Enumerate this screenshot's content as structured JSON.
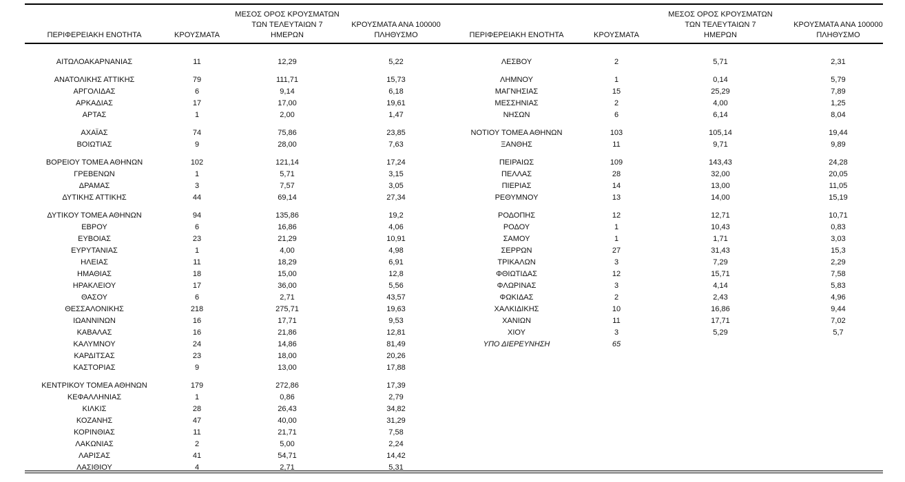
{
  "colors": {
    "background": "#ffffff",
    "text": "#111111",
    "rule": "#000000",
    "bottom_rule_dark": "#3f3f3f",
    "bottom_rule_light": "#e6e6e6",
    "bottom_rule_gray": "#9a9a9a"
  },
  "columns": {
    "region": "ΠΕΡΙΦΕΡΕΙΑΚΗ ΕΝΟΤΗΤΑ",
    "cases": "ΚΡΟΥΣΜΑΤΑ",
    "avg7_lines": [
      "ΜΕΣΟΣ ΟΡΟΣ ΚΡΟΥΣΜΑΤΩΝ",
      "ΤΩΝ ΤΕΛΕΥΤΑΙΩΝ 7",
      "ΗΜΕΡΩΝ"
    ],
    "per100k_lines": [
      "ΚΡΟΥΣΜΑΤΑ ΑΝΑ 100000",
      "ΠΛΗΘΥΣΜΟ"
    ]
  },
  "left_table": {
    "groups": [
      [
        {
          "region": "ΑΙΤΩΛΟΑΚΑΡΝΑΝΙΑΣ",
          "cases": "11",
          "avg7": "12,29",
          "per100k": "5,22"
        }
      ],
      [
        {
          "region": "ΑΝΑΤΟΛΙΚΗΣ ΑΤΤΙΚΗΣ",
          "cases": "79",
          "avg7": "111,71",
          "per100k": "15,73"
        },
        {
          "region": "ΑΡΓΟΛΙΔΑΣ",
          "cases": "6",
          "avg7": "9,14",
          "per100k": "6,18"
        },
        {
          "region": "ΑΡΚΑΔΙΑΣ",
          "cases": "17",
          "avg7": "17,00",
          "per100k": "19,61"
        },
        {
          "region": "ΑΡΤΑΣ",
          "cases": "1",
          "avg7": "2,00",
          "per100k": "1,47"
        }
      ],
      [
        {
          "region": "ΑΧΑΪΑΣ",
          "cases": "74",
          "avg7": "75,86",
          "per100k": "23,85"
        },
        {
          "region": "ΒΟΙΩΤΙΑΣ",
          "cases": "9",
          "avg7": "28,00",
          "per100k": "7,63"
        }
      ],
      [
        {
          "region": "ΒΟΡΕΙΟΥ ΤΟΜΕΑ ΑΘΗΝΩΝ",
          "cases": "102",
          "avg7": "121,14",
          "per100k": "17,24"
        },
        {
          "region": "ΓΡΕΒΕΝΩΝ",
          "cases": "1",
          "avg7": "5,71",
          "per100k": "3,15"
        },
        {
          "region": "ΔΡΑΜΑΣ",
          "cases": "3",
          "avg7": "7,57",
          "per100k": "3,05"
        },
        {
          "region": "ΔΥΤΙΚΗΣ ΑΤΤΙΚΗΣ",
          "cases": "44",
          "avg7": "69,14",
          "per100k": "27,34"
        }
      ],
      [
        {
          "region": "ΔΥΤΙΚΟΥ ΤΟΜΕΑ ΑΘΗΝΩΝ",
          "cases": "94",
          "avg7": "135,86",
          "per100k": "19,2"
        },
        {
          "region": "ΕΒΡΟΥ",
          "cases": "6",
          "avg7": "16,86",
          "per100k": "4,06"
        },
        {
          "region": "ΕΥΒΟΙΑΣ",
          "cases": "23",
          "avg7": "21,29",
          "per100k": "10,91"
        },
        {
          "region": "ΕΥΡΥΤΑΝΙΑΣ",
          "cases": "1",
          "avg7": "4,00",
          "per100k": "4,98"
        },
        {
          "region": "ΗΛΕΙΑΣ",
          "cases": "11",
          "avg7": "18,29",
          "per100k": "6,91"
        },
        {
          "region": "ΗΜΑΘΙΑΣ",
          "cases": "18",
          "avg7": "15,00",
          "per100k": "12,8"
        },
        {
          "region": "ΗΡΑΚΛΕΙΟΥ",
          "cases": "17",
          "avg7": "36,00",
          "per100k": "5,56"
        },
        {
          "region": "ΘΑΣΟΥ",
          "cases": "6",
          "avg7": "2,71",
          "per100k": "43,57"
        },
        {
          "region": "ΘΕΣΣΑΛΟΝΙΚΗΣ",
          "cases": "218",
          "avg7": "275,71",
          "per100k": "19,63"
        },
        {
          "region": "ΙΩΑΝΝΙΝΩΝ",
          "cases": "16",
          "avg7": "17,71",
          "per100k": "9,53"
        },
        {
          "region": "ΚΑΒΑΛΑΣ",
          "cases": "16",
          "avg7": "21,86",
          "per100k": "12,81"
        },
        {
          "region": "ΚΑΛΥΜΝΟΥ",
          "cases": "24",
          "avg7": "14,86",
          "per100k": "81,49"
        },
        {
          "region": "ΚΑΡΔΙΤΣΑΣ",
          "cases": "23",
          "avg7": "18,00",
          "per100k": "20,26"
        },
        {
          "region": "ΚΑΣΤΟΡΙΑΣ",
          "cases": "9",
          "avg7": "13,00",
          "per100k": "17,88"
        }
      ],
      [
        {
          "region": "ΚΕΝΤΡΙΚΟΥ ΤΟΜΕΑ ΑΘΗΝΩΝ",
          "cases": "179",
          "avg7": "272,86",
          "per100k": "17,39"
        },
        {
          "region": "ΚΕΦΑΛΛΗΝΙΑΣ",
          "cases": "1",
          "avg7": "0,86",
          "per100k": "2,79"
        },
        {
          "region": "ΚΙΛΚΙΣ",
          "cases": "28",
          "avg7": "26,43",
          "per100k": "34,82"
        },
        {
          "region": "ΚΟΖΑΝΗΣ",
          "cases": "47",
          "avg7": "40,00",
          "per100k": "31,29"
        },
        {
          "region": "ΚΟΡΙΝΘΙΑΣ",
          "cases": "11",
          "avg7": "21,71",
          "per100k": "7,58"
        },
        {
          "region": "ΛΑΚΩΝΙΑΣ",
          "cases": "2",
          "avg7": "5,00",
          "per100k": "2,24"
        },
        {
          "region": "ΛΑΡΙΣΑΣ",
          "cases": "41",
          "avg7": "54,71",
          "per100k": "14,42"
        },
        {
          "region": "ΛΑΣΙΘΙΟΥ",
          "cases": "4",
          "avg7": "2,71",
          "per100k": "5,31"
        }
      ]
    ]
  },
  "right_table": {
    "groups": [
      [
        {
          "region": "ΛΕΣΒΟΥ",
          "cases": "2",
          "avg7": "5,71",
          "per100k": "2,31"
        }
      ],
      [
        {
          "region": "ΛΗΜΝΟΥ",
          "cases": "1",
          "avg7": "0,14",
          "per100k": "5,79"
        },
        {
          "region": "ΜΑΓΝΗΣΙΑΣ",
          "cases": "15",
          "avg7": "25,29",
          "per100k": "7,89"
        },
        {
          "region": "ΜΕΣΣΗΝΙΑΣ",
          "cases": "2",
          "avg7": "4,00",
          "per100k": "1,25"
        },
        {
          "region": "ΝΗΣΩΝ",
          "cases": "6",
          "avg7": "6,14",
          "per100k": "8,04"
        }
      ],
      [
        {
          "region": "ΝΟΤΙΟΥ ΤΟΜΕΑ ΑΘΗΝΩΝ",
          "cases": "103",
          "avg7": "105,14",
          "per100k": "19,44"
        },
        {
          "region": "ΞΑΝΘΗΣ",
          "cases": "11",
          "avg7": "9,71",
          "per100k": "9,89"
        }
      ],
      [
        {
          "region": "ΠΕΙΡΑΙΩΣ",
          "cases": "109",
          "avg7": "143,43",
          "per100k": "24,28"
        },
        {
          "region": "ΠΕΛΛΑΣ",
          "cases": "28",
          "avg7": "32,00",
          "per100k": "20,05"
        },
        {
          "region": "ΠΙΕΡΙΑΣ",
          "cases": "14",
          "avg7": "13,00",
          "per100k": "11,05"
        },
        {
          "region": "ΡΕΘΥΜΝΟΥ",
          "cases": "13",
          "avg7": "14,00",
          "per100k": "15,19"
        }
      ],
      [
        {
          "region": "ΡΟΔΟΠΗΣ",
          "cases": "12",
          "avg7": "12,71",
          "per100k": "10,71"
        },
        {
          "region": "ΡΟΔΟΥ",
          "cases": "1",
          "avg7": "10,43",
          "per100k": "0,83"
        },
        {
          "region": "ΣΑΜΟΥ",
          "cases": "1",
          "avg7": "1,71",
          "per100k": "3,03"
        },
        {
          "region": "ΣΕΡΡΩΝ",
          "cases": "27",
          "avg7": "31,43",
          "per100k": "15,3"
        },
        {
          "region": "ΤΡΙΚΑΛΩΝ",
          "cases": "3",
          "avg7": "7,29",
          "per100k": "2,29"
        },
        {
          "region": "ΦΘΙΩΤΙΔΑΣ",
          "cases": "12",
          "avg7": "15,71",
          "per100k": "7,58"
        },
        {
          "region": "ΦΛΩΡΙΝΑΣ",
          "cases": "3",
          "avg7": "4,14",
          "per100k": "5,83"
        },
        {
          "region": "ΦΩΚΙΔΑΣ",
          "cases": "2",
          "avg7": "2,43",
          "per100k": "4,96"
        },
        {
          "region": "ΧΑΛΚΙΔΙΚΗΣ",
          "cases": "10",
          "avg7": "16,86",
          "per100k": "9,44"
        },
        {
          "region": "ΧΑΝΙΩΝ",
          "cases": "11",
          "avg7": "17,71",
          "per100k": "7,02"
        },
        {
          "region": "ΧΙΟΥ",
          "cases": "3",
          "avg7": "5,29",
          "per100k": "5,7"
        },
        {
          "region": "ΥΠΟ ΔΙΕΡΕΥΝΗΣΗ",
          "cases": "65",
          "avg7": "",
          "per100k": "",
          "italic": true
        }
      ],
      []
    ]
  }
}
